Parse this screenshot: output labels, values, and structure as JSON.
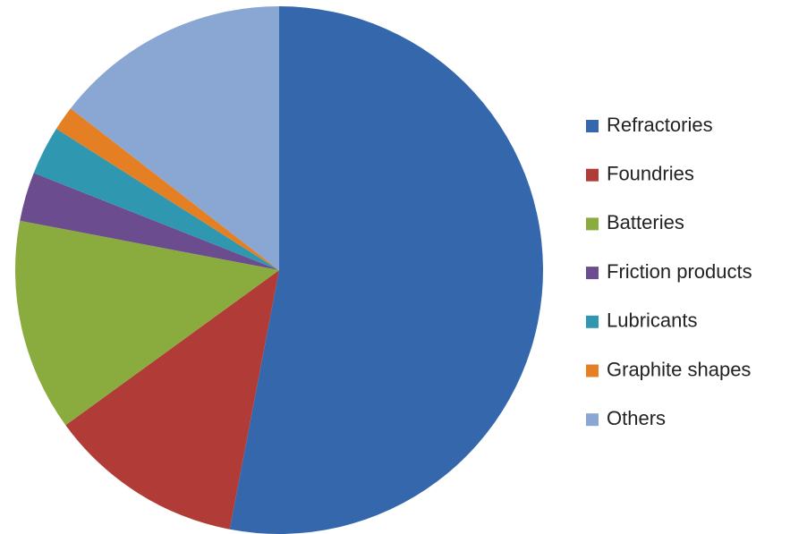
{
  "chart_data": {
    "type": "pie",
    "categories": [
      "Refractories",
      "Foundries",
      "Batteries",
      "Friction products",
      "Lubricants",
      "Graphite shapes",
      "Others"
    ],
    "values": [
      53,
      12,
      13,
      3,
      3,
      1.5,
      14.5
    ],
    "colors": [
      "#3567ad",
      "#b13b37",
      "#8aac3f",
      "#6a4c8f",
      "#2f97b0",
      "#e47f24",
      "#8aa7d3"
    ],
    "legend": "right"
  }
}
